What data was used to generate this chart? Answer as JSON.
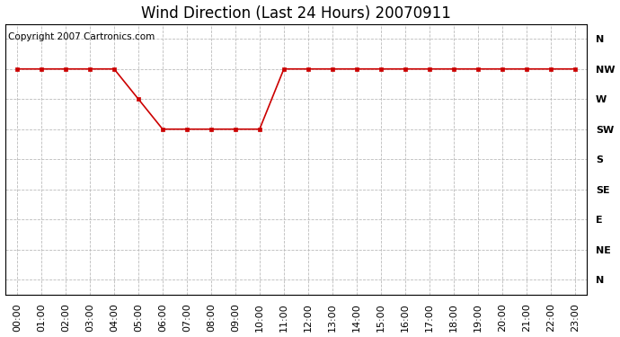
{
  "title": "Wind Direction (Last 24 Hours) 20070911",
  "copyright_text": "Copyright 2007 Cartronics.com",
  "background_color": "#ffffff",
  "plot_bg_color": "#ffffff",
  "grid_color": "#bbbbbb",
  "line_color": "#cc0000",
  "marker_color": "#cc0000",
  "x_labels": [
    "00:00",
    "01:00",
    "02:00",
    "03:00",
    "04:00",
    "05:00",
    "06:00",
    "07:00",
    "08:00",
    "09:00",
    "10:00",
    "11:00",
    "12:00",
    "13:00",
    "14:00",
    "15:00",
    "16:00",
    "17:00",
    "18:00",
    "19:00",
    "20:00",
    "21:00",
    "22:00",
    "23:00"
  ],
  "y_tick_labels_top_to_bottom": [
    "N",
    "NW",
    "W",
    "SW",
    "S",
    "SE",
    "E",
    "NE",
    "N"
  ],
  "data_values_top_to_bottom": [
    1,
    1,
    1,
    1,
    1,
    2,
    3,
    3,
    3,
    3,
    3,
    1,
    1,
    1,
    1,
    1,
    1,
    1,
    1,
    1,
    1,
    1,
    1,
    1
  ],
  "title_fontsize": 12,
  "axis_label_fontsize": 8,
  "copyright_fontsize": 7.5
}
